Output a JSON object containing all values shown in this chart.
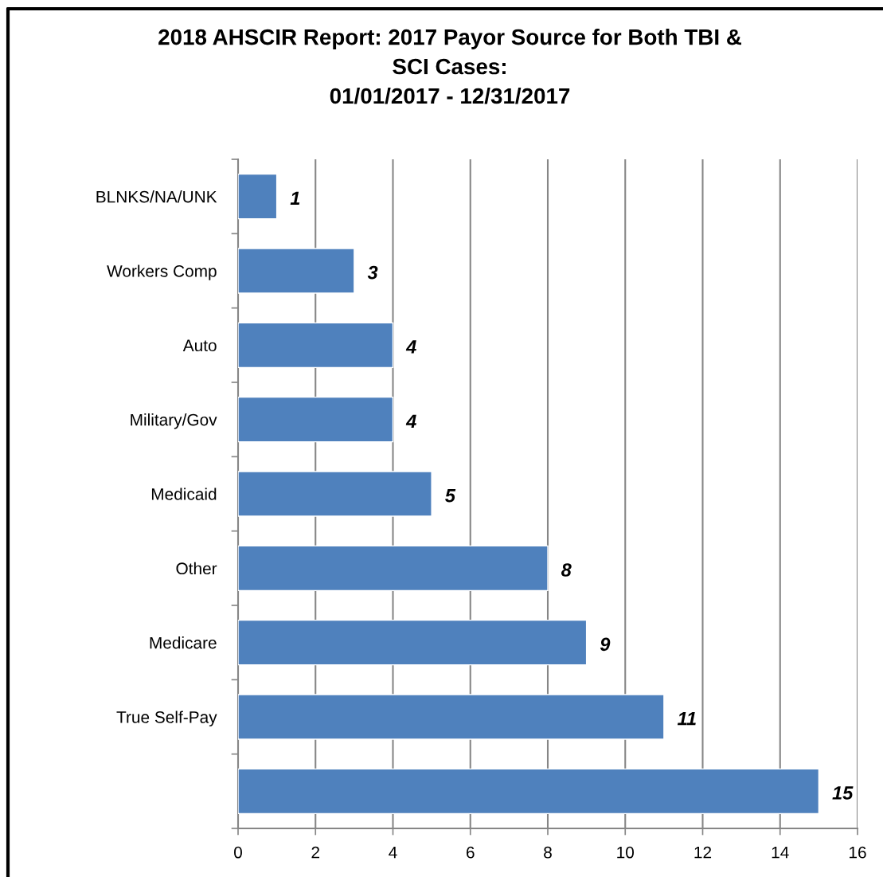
{
  "chart_data": {
    "type": "bar",
    "orientation": "horizontal",
    "title": "2018 AHSCIR Report: 2017 Payor Source for Both TBI &\nSCI Cases:\n01/01/2017 - 12/31/2017",
    "categories": [
      "BLNKS/NA/UNK",
      "Workers Comp",
      "Auto",
      "Military/Gov",
      "Medicaid",
      "Other",
      "Medicare",
      "True Self-Pay",
      null
    ],
    "values": [
      1,
      3,
      4,
      4,
      5,
      8,
      9,
      11,
      15
    ],
    "color": "#4f81bd",
    "xlim": [
      0,
      16
    ],
    "xticks": [
      0,
      2,
      4,
      6,
      8,
      10,
      12,
      14,
      16
    ],
    "grid": "x",
    "data_labels": true,
    "legend": false
  }
}
